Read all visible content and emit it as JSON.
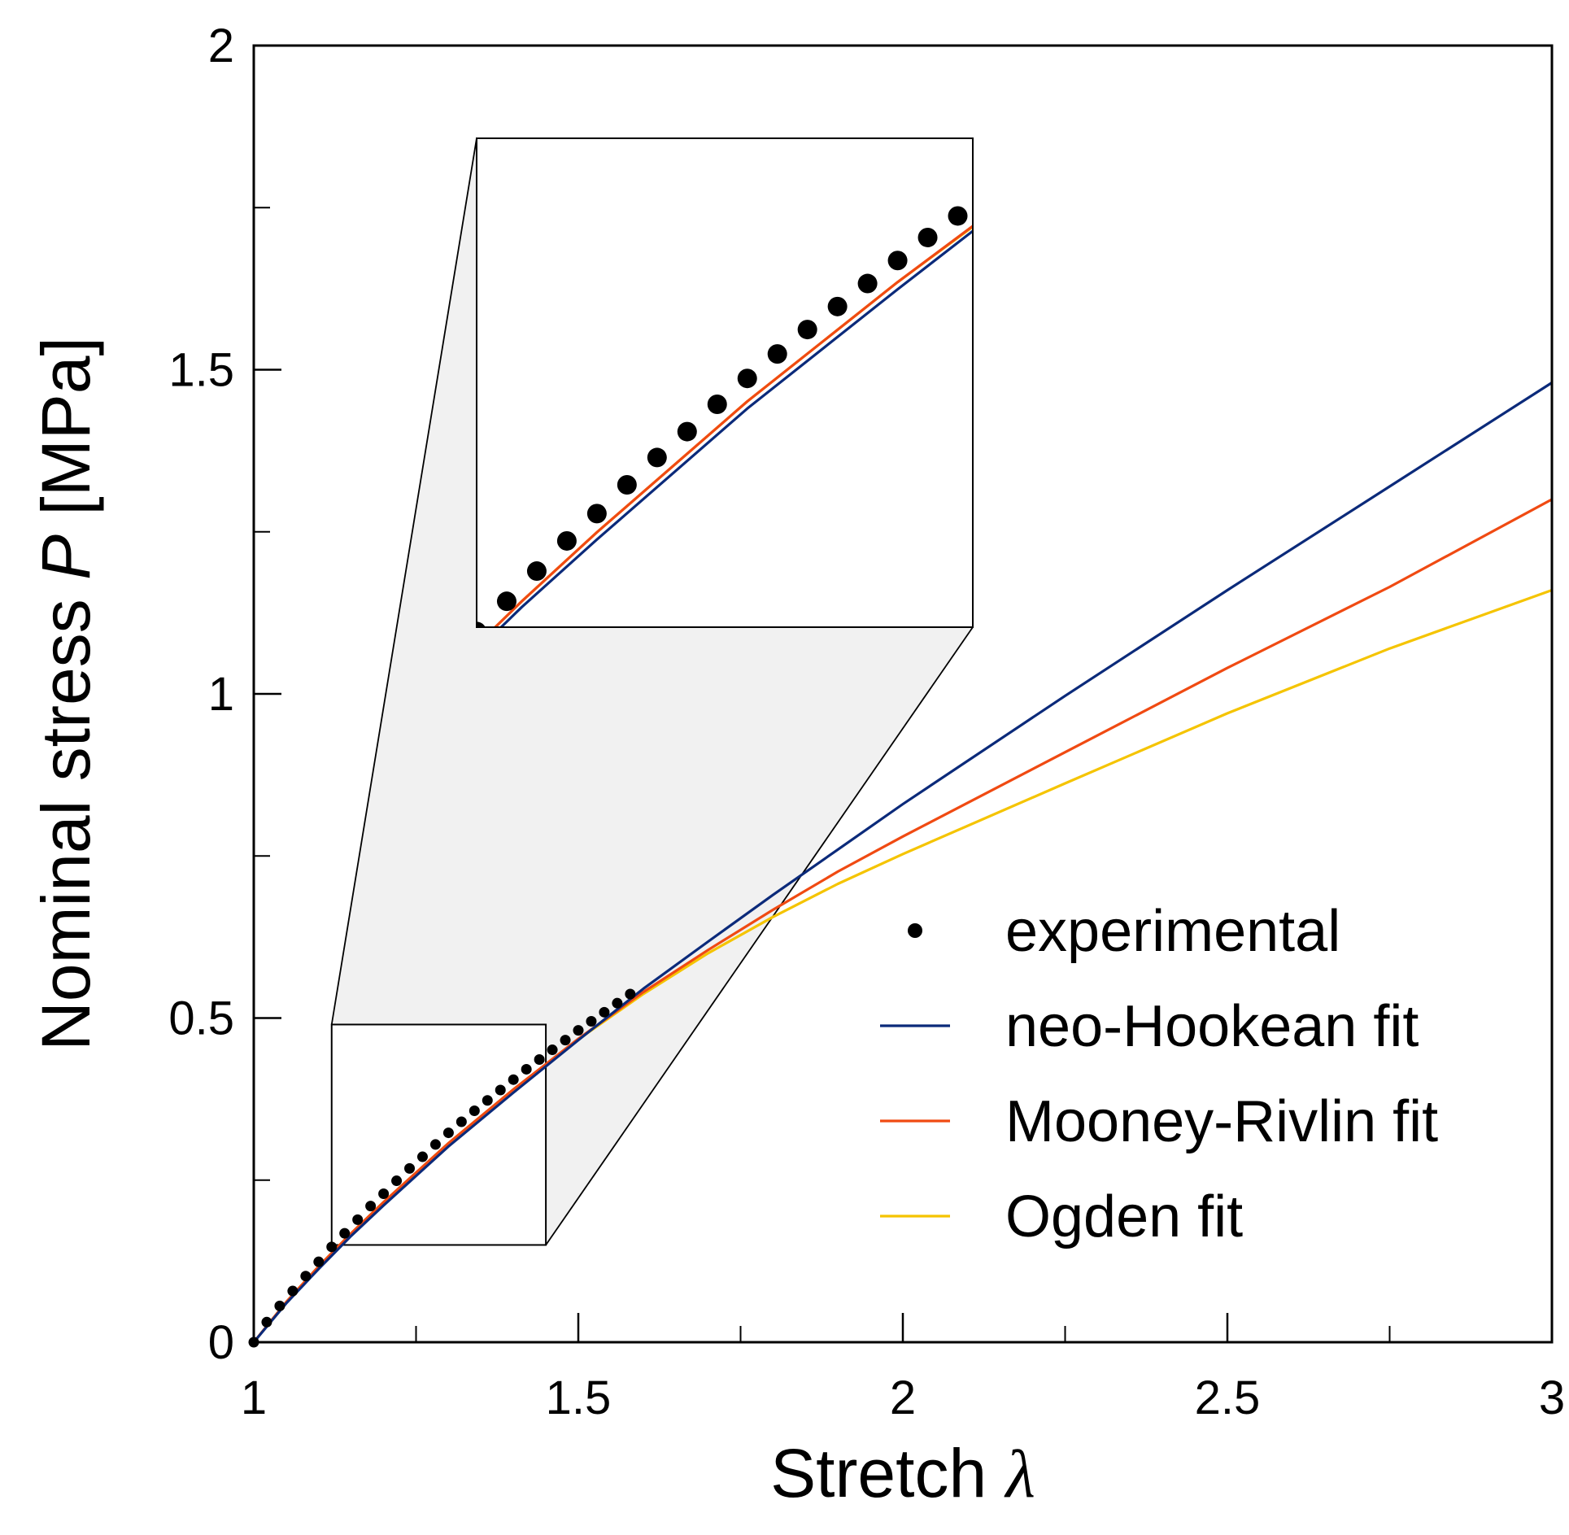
{
  "chart_data": {
    "type": "line",
    "title": "",
    "xlabel": "Stretch",
    "xlabel_symbol": "λ",
    "ylabel_prefix": "Nominal stress",
    "ylabel_symbol": "P",
    "ylabel_unit": "[MPa]",
    "xlim": [
      1,
      3
    ],
    "ylim": [
      0,
      2
    ],
    "x_major_ticks": [
      1,
      1.5,
      2,
      2.5,
      3
    ],
    "x_tick_labels": [
      "1",
      "1.5",
      "2",
      "2.5",
      "3"
    ],
    "x_minor_ticks": [
      1.25,
      1.75,
      2.25,
      2.75
    ],
    "y_major_ticks": [
      0,
      0.5,
      1,
      1.5,
      2
    ],
    "y_tick_labels": [
      "0",
      "0.5",
      "1",
      "1.5",
      "2"
    ],
    "y_minor_ticks": [
      0.25,
      0.75,
      1.25,
      1.75
    ],
    "grid": false,
    "legend_position": "bottom-right",
    "inset": {
      "zoom_region": {
        "x": [
          1.12,
          1.45
        ],
        "y": [
          0.15,
          0.49
        ]
      },
      "zoom_description": "magnified view of the region indicated by the rectangle"
    },
    "series": [
      {
        "name": "experimental",
        "kind": "points",
        "color": "#000000",
        "x": [
          1.0,
          1.02,
          1.04,
          1.06,
          1.08,
          1.1,
          1.12,
          1.14,
          1.16,
          1.18,
          1.2,
          1.22,
          1.24,
          1.26,
          1.28,
          1.3,
          1.32,
          1.34,
          1.36,
          1.38,
          1.4,
          1.42,
          1.44,
          1.46,
          1.48,
          1.5,
          1.52,
          1.54,
          1.56,
          1.58
        ],
        "y": [
          0.0,
          0.031,
          0.056,
          0.079,
          0.102,
          0.124,
          0.147,
          0.168,
          0.189,
          0.21,
          0.229,
          0.249,
          0.268,
          0.286,
          0.305,
          0.323,
          0.34,
          0.357,
          0.373,
          0.389,
          0.405,
          0.421,
          0.436,
          0.451,
          0.466,
          0.481,
          0.495,
          0.509,
          0.523,
          0.537
        ]
      },
      {
        "name": "neo-Hookean fit",
        "kind": "line",
        "color": "#0b2a7a",
        "x": [
          1.0,
          1.05,
          1.1,
          1.15,
          1.2,
          1.3,
          1.4,
          1.5,
          1.6,
          1.7,
          1.8,
          1.9,
          2.0,
          2.25,
          2.5,
          2.75,
          3.0
        ],
        "y": [
          0.0,
          0.06,
          0.113,
          0.164,
          0.211,
          0.302,
          0.385,
          0.466,
          0.545,
          0.618,
          0.69,
          0.76,
          0.83,
          0.997,
          1.16,
          1.32,
          1.48
        ]
      },
      {
        "name": "Mooney-Rivlin fit",
        "kind": "line",
        "color": "#f04a12",
        "x": [
          1.0,
          1.05,
          1.1,
          1.15,
          1.2,
          1.3,
          1.4,
          1.5,
          1.6,
          1.7,
          1.8,
          1.9,
          2.0,
          2.25,
          2.5,
          2.75,
          3.0
        ],
        "y": [
          0.0,
          0.062,
          0.117,
          0.168,
          0.216,
          0.307,
          0.39,
          0.468,
          0.54,
          0.605,
          0.667,
          0.726,
          0.78,
          0.91,
          1.04,
          1.165,
          1.3
        ]
      },
      {
        "name": "Ogden fit",
        "kind": "line",
        "color": "#f5c400",
        "x": [
          1.0,
          1.05,
          1.1,
          1.15,
          1.2,
          1.3,
          1.4,
          1.5,
          1.6,
          1.7,
          1.8,
          1.9,
          2.0,
          2.25,
          2.5,
          2.75,
          3.0
        ],
        "y": [
          0.0,
          0.062,
          0.117,
          0.168,
          0.216,
          0.307,
          0.39,
          0.467,
          0.537,
          0.6,
          0.656,
          0.707,
          0.753,
          0.862,
          0.97,
          1.07,
          1.16
        ]
      }
    ]
  }
}
